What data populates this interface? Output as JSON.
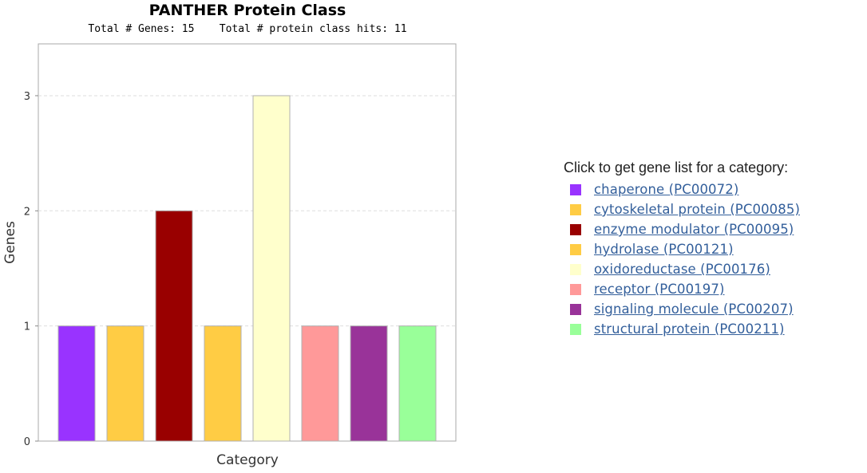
{
  "chart_data": {
    "type": "bar",
    "title": "PANTHER Protein Class",
    "subtitle": "Total # Genes: 15    Total # protein class hits: 11",
    "xlabel": "Category",
    "ylabel": "Genes",
    "ylim": [
      0,
      3.45
    ],
    "yticks": [
      "0",
      "1",
      "2",
      "3"
    ],
    "grid": true,
    "categories": [
      "chaperone (PC00072)",
      "cytoskeletal protein (PC00085)",
      "enzyme modulator (PC00095)",
      "hydrolase (PC00121)",
      "oxidoreductase (PC00176)",
      "receptor (PC00197)",
      "signaling molecule (PC00207)",
      "structural protein (PC00211)"
    ],
    "values": [
      1,
      1,
      2,
      1,
      3,
      1,
      1,
      1
    ],
    "colors": [
      "#9933ff",
      "#ffcc44",
      "#990000",
      "#ffcc44",
      "#ffffcc",
      "#ff9999",
      "#993399",
      "#99ff99"
    ]
  },
  "legend": {
    "heading": "Click to get gene list for a category:",
    "placement": "right",
    "items": [
      {
        "label": "chaperone (PC00072)",
        "color": "#9933ff"
      },
      {
        "label": "cytoskeletal protein (PC00085)",
        "color": "#ffcc44"
      },
      {
        "label": "enzyme modulator (PC00095)",
        "color": "#990000"
      },
      {
        "label": "hydrolase (PC00121)",
        "color": "#ffcc44"
      },
      {
        "label": "oxidoreductase (PC00176)",
        "color": "#ffffcc"
      },
      {
        "label": "receptor (PC00197)",
        "color": "#ff9999"
      },
      {
        "label": "signaling molecule (PC00207)",
        "color": "#993399"
      },
      {
        "label": "structural protein (PC00211)",
        "color": "#99ff99"
      }
    ]
  }
}
